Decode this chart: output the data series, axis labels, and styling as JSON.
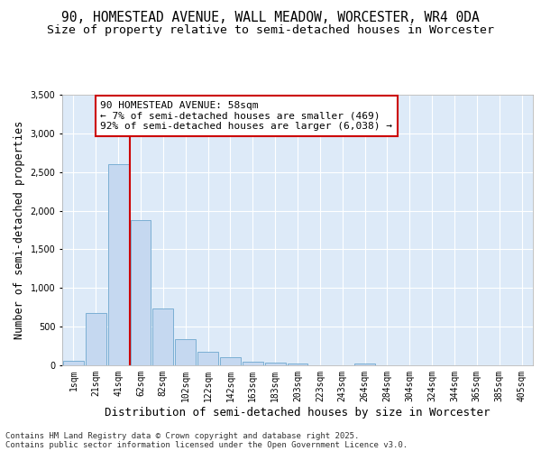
{
  "title1": "90, HOMESTEAD AVENUE, WALL MEADOW, WORCESTER, WR4 0DA",
  "title2": "Size of property relative to semi-detached houses in Worcester",
  "xlabel": "Distribution of semi-detached houses by size in Worcester",
  "ylabel": "Number of semi-detached properties",
  "categories": [
    "1sqm",
    "21sqm",
    "41sqm",
    "62sqm",
    "82sqm",
    "102sqm",
    "122sqm",
    "142sqm",
    "163sqm",
    "183sqm",
    "203sqm",
    "223sqm",
    "243sqm",
    "264sqm",
    "284sqm",
    "304sqm",
    "324sqm",
    "344sqm",
    "365sqm",
    "385sqm",
    "405sqm"
  ],
  "values": [
    55,
    680,
    2600,
    1880,
    730,
    340,
    170,
    100,
    45,
    30,
    20,
    0,
    0,
    25,
    0,
    0,
    0,
    0,
    0,
    0,
    0
  ],
  "bar_color": "#c5d8f0",
  "bar_edgecolor": "#7bafd4",
  "bg_color": "#ddeaf8",
  "grid_color": "#ffffff",
  "vline_color": "#cc0000",
  "annotation_title": "90 HOMESTEAD AVENUE: 58sqm",
  "annotation_line1": "← 7% of semi-detached houses are smaller (469)",
  "annotation_line2": "92% of semi-detached houses are larger (6,038) →",
  "annotation_box_color": "#ffffff",
  "annotation_border_color": "#cc0000",
  "ylim": [
    0,
    3500
  ],
  "yticks": [
    0,
    500,
    1000,
    1500,
    2000,
    2500,
    3000,
    3500
  ],
  "footer1": "Contains HM Land Registry data © Crown copyright and database right 2025.",
  "footer2": "Contains public sector information licensed under the Open Government Licence v3.0.",
  "title1_fontsize": 10.5,
  "title2_fontsize": 9.5,
  "xlabel_fontsize": 9,
  "ylabel_fontsize": 8.5,
  "tick_fontsize": 7,
  "footer_fontsize": 6.5,
  "ann_fontsize": 8
}
